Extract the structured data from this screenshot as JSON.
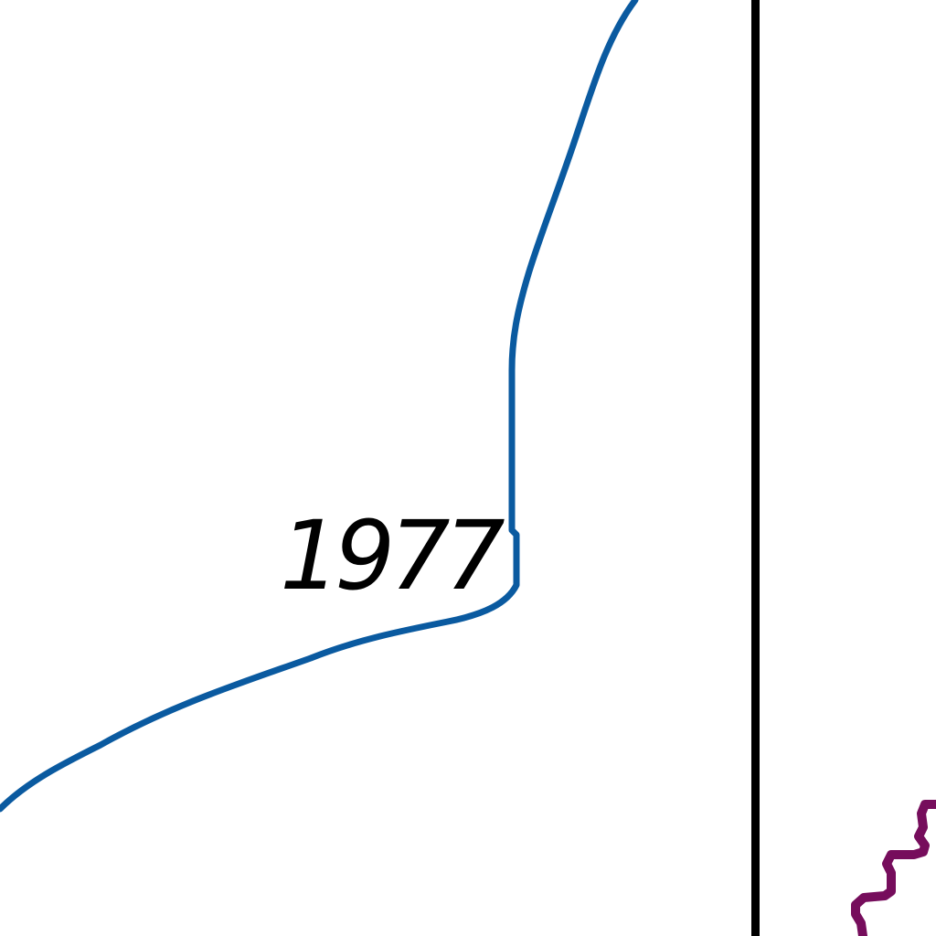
{
  "map": {
    "year_label": "1977",
    "colors": {
      "background": "#ffffff",
      "boundary_line": "#0a5aa0",
      "vertical_rule": "#000000",
      "feature_line": "#760d5c",
      "label": "#000000"
    }
  }
}
